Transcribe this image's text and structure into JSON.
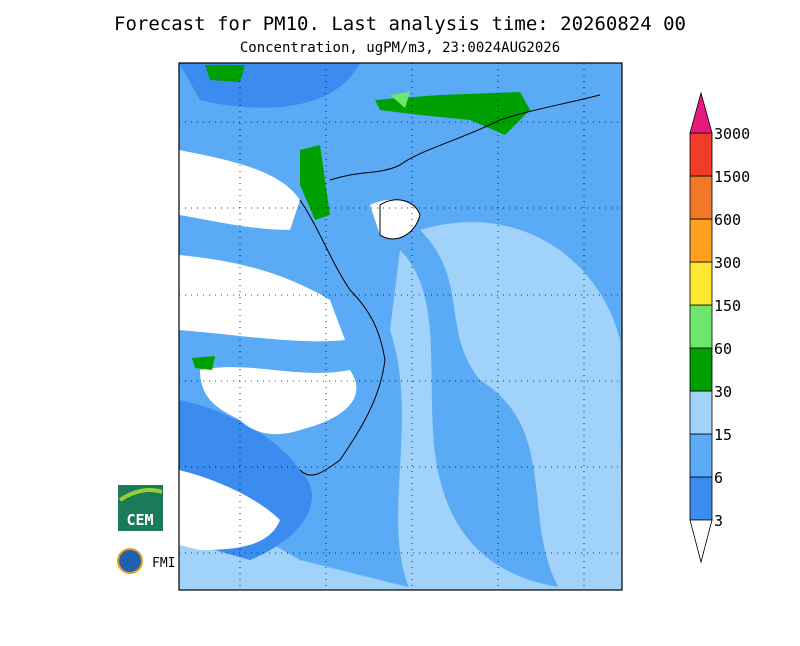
{
  "title": "Forecast for PM10. Last analysis time: 20260824 00",
  "subtitle": "Concentration, ugPM/m3, 23:0024AUG2026",
  "legend": {
    "ticks": [
      3,
      6,
      15,
      30,
      60,
      150,
      300,
      600,
      1500,
      3000
    ],
    "colors": [
      "#3c8cf0",
      "#5aaaf5",
      "#a0d2fa",
      "#00a000",
      "#6ee66e",
      "#ffe632",
      "#ffa01e",
      "#f07828",
      "#f03c28"
    ],
    "over_color": "#e6197d",
    "under_color": "#ffffff"
  },
  "logos": [
    "CEM",
    "FMI"
  ]
}
